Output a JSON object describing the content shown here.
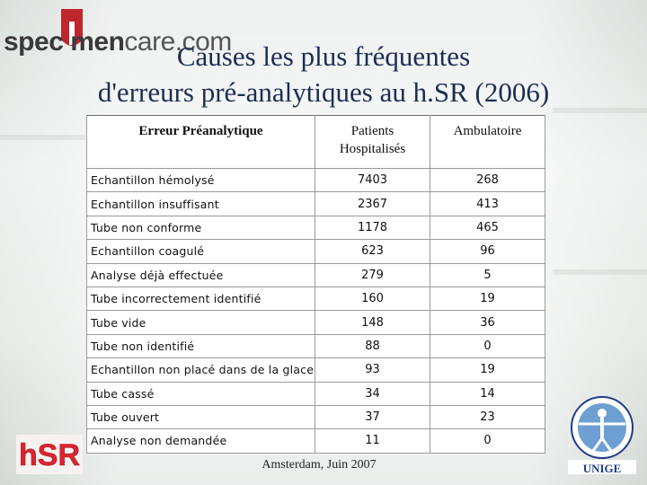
{
  "logo": {
    "part1": "spec",
    "part2": "i",
    "part3": "men",
    "part4": "care.com"
  },
  "title": {
    "line1": "Causes les plus fréquentes",
    "line2": "d'erreurs pré-analytiques au h.SR (2006)"
  },
  "table": {
    "headers": {
      "error": "Erreur Préanalytique",
      "inpatients_1": "Patients",
      "inpatients_2": "Hospitalisés",
      "outpatients": "Ambulatoire"
    },
    "rows": [
      {
        "label": "Echantillon hémolysé",
        "inpatients": "7403",
        "outpatients": "268"
      },
      {
        "label": "Echantillon insuffisant",
        "inpatients": "2367",
        "outpatients": "413"
      },
      {
        "label": "Tube non conforme",
        "inpatients": "1178",
        "outpatients": "465"
      },
      {
        "label": "Echantillon coagulé",
        "inpatients": "623",
        "outpatients": "96"
      },
      {
        "label": "Analyse déjà effectuée",
        "inpatients": "279",
        "outpatients": "5"
      },
      {
        "label": "Tube incorrectement identifié",
        "inpatients": "160",
        "outpatients": "19"
      },
      {
        "label": "Tube vide",
        "inpatients": "148",
        "outpatients": "36"
      },
      {
        "label": "Tube non identifié",
        "inpatients": "88",
        "outpatients": "0"
      },
      {
        "label": "Echantillon non placé dans de la glace",
        "inpatients": "93",
        "outpatients": "19"
      },
      {
        "label": "Tube cassé",
        "inpatients": "34",
        "outpatients": "14"
      },
      {
        "label": "Tube ouvert",
        "inpatients": "37",
        "outpatients": "23"
      },
      {
        "label": "Analyse non demandée",
        "inpatients": "11",
        "outpatients": "0"
      }
    ]
  },
  "footer": "Amsterdam, Juin 2007",
  "logos": {
    "hsr": "hSR",
    "unige": "UNIGE"
  },
  "colors": {
    "title": "#1c2d55",
    "logo_red": "#c0262d",
    "hsr_red": "#d8252f",
    "unige_blue": "#1f3c88"
  }
}
